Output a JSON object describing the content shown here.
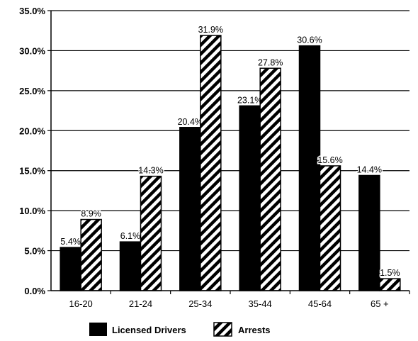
{
  "chart_data": {
    "type": "bar",
    "categories": [
      "16-20",
      "21-24",
      "25-34",
      "35-44",
      "45-64",
      "65 +"
    ],
    "series": [
      {
        "name": "Licensed Drivers",
        "values": [
          5.4,
          6.1,
          20.4,
          23.1,
          30.6,
          14.4
        ],
        "labels": [
          "5.4%",
          "6.1%",
          "20.4%",
          "23.1%",
          "30.6%",
          "14.4%"
        ],
        "color": "#000000",
        "pattern": "solid"
      },
      {
        "name": "Arrests",
        "values": [
          8.9,
          14.3,
          31.9,
          27.8,
          15.6,
          1.5
        ],
        "labels": [
          "8.9%",
          "14.3%",
          "31.9%",
          "27.8%",
          "15.6%",
          "1.5%"
        ],
        "color": "#000000",
        "pattern": "diagonal-hatch"
      }
    ],
    "ylim": [
      0,
      35
    ],
    "yticks": [
      0,
      5,
      10,
      15,
      20,
      25,
      30,
      35
    ],
    "ytick_labels": [
      "0.0%",
      "5.0%",
      "10.0%",
      "15.0%",
      "20.0%",
      "25.0%",
      "30.0%",
      "35.0%"
    ],
    "grid": true,
    "legend_position": "bottom"
  }
}
